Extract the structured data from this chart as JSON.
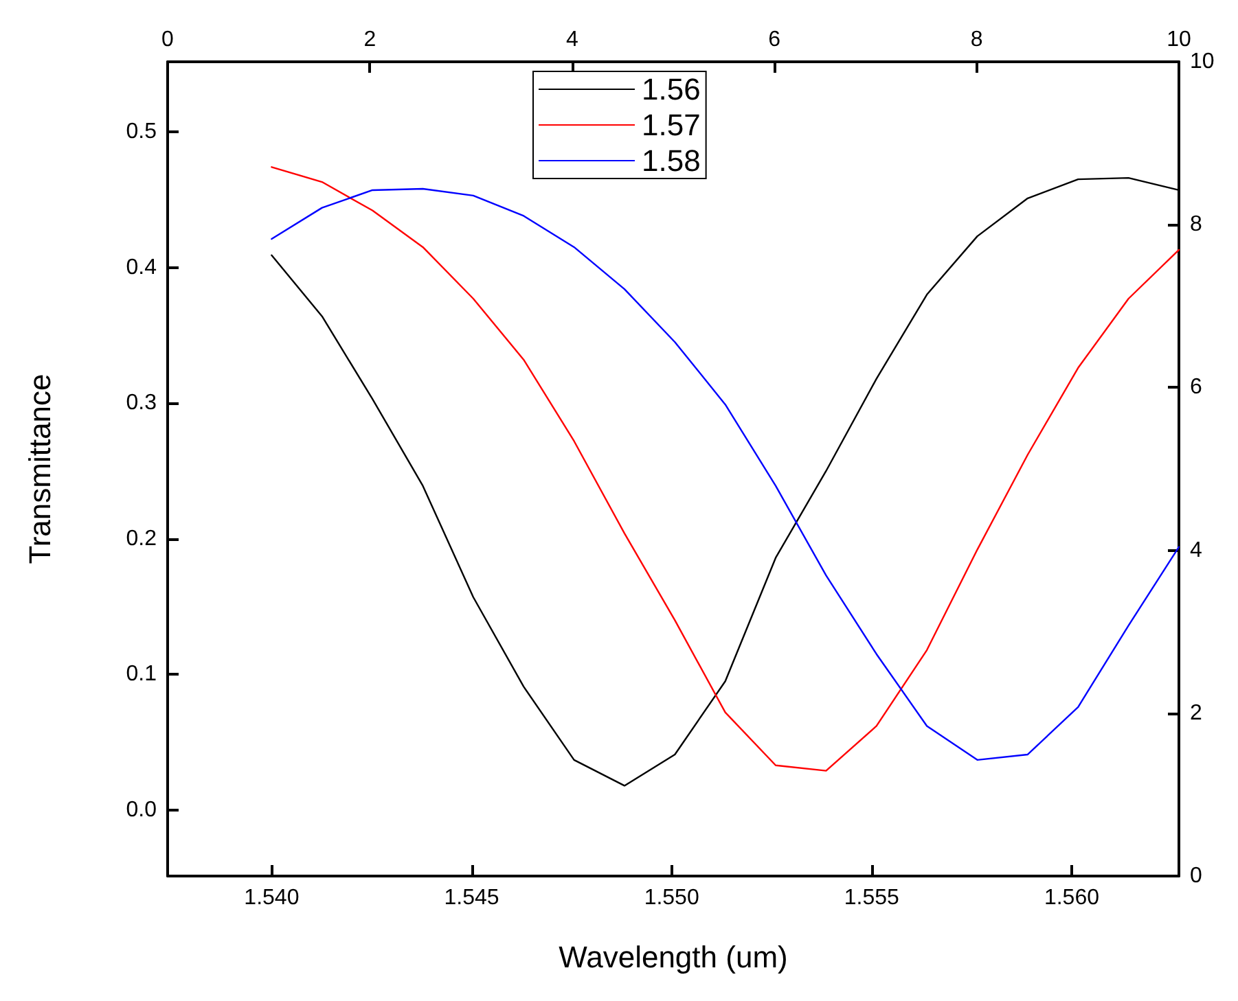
{
  "chart_data": {
    "type": "line",
    "xlabel": "Wavelength (um)",
    "ylabel": "Transmittance",
    "x": [
      1.54,
      1.54126,
      1.54252,
      1.54378,
      1.54504,
      1.5463,
      1.54756,
      1.54882,
      1.55008,
      1.55134,
      1.5526,
      1.55386,
      1.55512,
      1.55638,
      1.55764,
      1.5589,
      1.56016,
      1.56142,
      1.56268
    ],
    "series": [
      {
        "name": "1.56",
        "color": "#000000",
        "values": [
          0.409,
          0.364,
          0.303,
          0.239,
          0.157,
          0.091,
          0.037,
          0.018,
          0.041,
          0.095,
          0.186,
          0.25,
          0.318,
          0.38,
          0.423,
          0.451,
          0.465,
          0.466,
          0.457
        ]
      },
      {
        "name": "1.57",
        "color": "#ff0000",
        "values": [
          0.474,
          0.463,
          0.442,
          0.415,
          0.377,
          0.332,
          0.272,
          0.204,
          0.14,
          0.072,
          0.033,
          0.029,
          0.062,
          0.118,
          0.192,
          0.262,
          0.326,
          0.377,
          0.413
        ]
      },
      {
        "name": "1.58",
        "color": "#0000ff",
        "values": [
          0.421,
          0.444,
          0.457,
          0.458,
          0.453,
          0.438,
          0.415,
          0.384,
          0.345,
          0.299,
          0.239,
          0.173,
          0.115,
          0.062,
          0.037,
          0.041,
          0.076,
          0.136,
          0.194
        ]
      }
    ],
    "xlim": [
      1.5374,
      1.56268
    ],
    "xticks": [
      {
        "value": 1.54,
        "label": "1.540"
      },
      {
        "value": 1.545,
        "label": "1.545"
      },
      {
        "value": 1.55,
        "label": "1.550"
      },
      {
        "value": 1.555,
        "label": "1.555"
      },
      {
        "value": 1.56,
        "label": "1.560"
      }
    ],
    "ylim": [
      -0.0486,
      0.5516
    ],
    "yticks": [
      {
        "value": 0,
        "label": "0.0"
      },
      0.1,
      0.2,
      0.3,
      0.4,
      0.5
    ],
    "x2lim": [
      0,
      10
    ],
    "x2ticks": [
      0,
      2,
      4,
      6,
      8,
      10
    ],
    "y2lim": [
      0,
      10
    ],
    "y2ticks": [
      0,
      2,
      4,
      6,
      8,
      10
    ],
    "legend": "top",
    "grid": false,
    "marker": "none",
    "line_style": "solid"
  }
}
